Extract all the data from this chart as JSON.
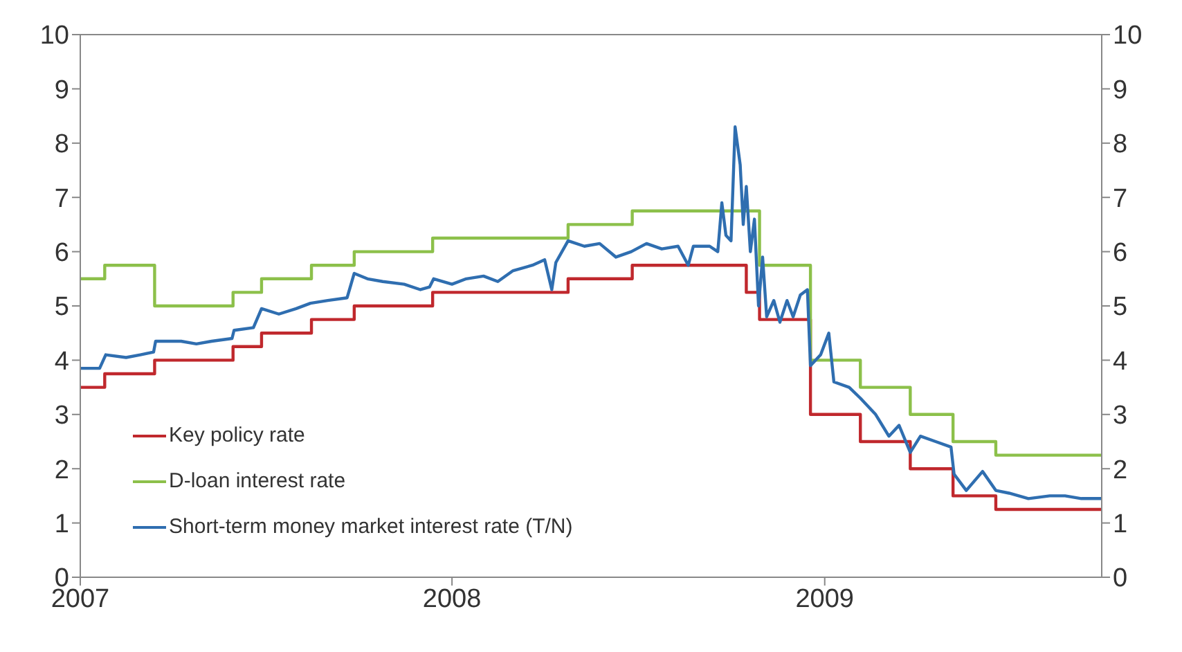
{
  "chart_data": {
    "type": "line",
    "xlim": [
      "2007-01-01",
      "2009-09-30"
    ],
    "xticks": [
      "2007",
      "2008",
      "2009"
    ],
    "ylim": [
      0,
      10
    ],
    "yticks": [
      0,
      1,
      2,
      3,
      4,
      5,
      6,
      7,
      8,
      9,
      10
    ],
    "y2lim": [
      0,
      10
    ],
    "y2ticks": [
      0,
      1,
      2,
      3,
      4,
      5,
      6,
      7,
      8,
      9,
      10
    ],
    "grid": false,
    "legend": "bottom left",
    "marker": "none",
    "line_style": "solid",
    "series": [
      {
        "name": "Key policy rate",
        "type": "step",
        "color": "#c0282d",
        "x": [
          "2007-01-01",
          "2007-01-25",
          "2007-03-15",
          "2007-05-31",
          "2007-06-28",
          "2007-08-16",
          "2007-09-27",
          "2007-12-13",
          "2008-04-24",
          "2008-06-26",
          "2008-10-16",
          "2008-10-29",
          "2008-12-18",
          "2009-02-05",
          "2009-03-26",
          "2009-05-07",
          "2009-06-18",
          "2009-09-30"
        ],
        "values": [
          3.5,
          3.75,
          4.0,
          4.25,
          4.5,
          4.75,
          5.0,
          5.25,
          5.5,
          5.75,
          5.25,
          4.75,
          3.0,
          2.5,
          2.0,
          1.5,
          1.25,
          1.25
        ]
      },
      {
        "name": "D-loan interest rate",
        "type": "step",
        "color": "#8cc04a",
        "x": [
          "2007-01-01",
          "2007-01-25",
          "2007-03-15",
          "2007-05-31",
          "2007-06-28",
          "2007-08-16",
          "2007-09-27",
          "2007-12-13",
          "2008-04-24",
          "2008-06-26",
          "2008-10-29",
          "2008-12-18",
          "2009-02-05",
          "2009-03-26",
          "2009-05-07",
          "2009-06-18",
          "2009-09-30"
        ],
        "values": [
          5.5,
          5.75,
          5.0,
          5.25,
          5.5,
          5.75,
          6.0,
          6.25,
          6.5,
          6.75,
          5.75,
          4.0,
          3.5,
          3.0,
          2.5,
          2.25,
          2.25
        ]
      },
      {
        "name": "Short-term money market interest rate (T/N)",
        "color": "#2f6eb0",
        "x": [
          "2007-01-01",
          "2007-01-20",
          "2007-01-26",
          "2007-02-15",
          "2007-03-01",
          "2007-03-14",
          "2007-03-16",
          "2007-04-10",
          "2007-04-25",
          "2007-05-10",
          "2007-05-30",
          "2007-06-01",
          "2007-06-20",
          "2007-06-28",
          "2007-07-15",
          "2007-08-01",
          "2007-08-15",
          "2007-09-01",
          "2007-09-20",
          "2007-09-27",
          "2007-10-10",
          "2007-10-25",
          "2007-11-15",
          "2007-12-01",
          "2007-12-10",
          "2007-12-14",
          "2008-01-01",
          "2008-01-15",
          "2008-02-01",
          "2008-02-15",
          "2008-03-01",
          "2008-03-20",
          "2008-04-01",
          "2008-04-08",
          "2008-04-12",
          "2008-04-24",
          "2008-05-10",
          "2008-05-25",
          "2008-06-10",
          "2008-06-25",
          "2008-07-10",
          "2008-07-25",
          "2008-08-10",
          "2008-08-20",
          "2008-08-25",
          "2008-09-10",
          "2008-09-18",
          "2008-09-22",
          "2008-09-26",
          "2008-10-01",
          "2008-10-05",
          "2008-10-10",
          "2008-10-13",
          "2008-10-16",
          "2008-10-20",
          "2008-10-24",
          "2008-10-28",
          "2008-11-01",
          "2008-11-05",
          "2008-11-12",
          "2008-11-18",
          "2008-11-25",
          "2008-12-01",
          "2008-12-08",
          "2008-12-15",
          "2008-12-18",
          "2008-12-28",
          "2009-01-05",
          "2009-01-10",
          "2009-01-25",
          "2009-02-05",
          "2009-02-20",
          "2009-03-05",
          "2009-03-15",
          "2009-03-26",
          "2009-04-05",
          "2009-04-20",
          "2009-05-05",
          "2009-05-08",
          "2009-05-20",
          "2009-06-05",
          "2009-06-18",
          "2009-07-01",
          "2009-07-20",
          "2009-08-10",
          "2009-08-25",
          "2009-09-10",
          "2009-09-30"
        ],
        "values": [
          3.85,
          3.85,
          4.1,
          4.05,
          4.1,
          4.15,
          4.35,
          4.35,
          4.3,
          4.35,
          4.4,
          4.55,
          4.6,
          4.95,
          4.85,
          4.95,
          5.05,
          5.1,
          5.15,
          5.6,
          5.5,
          5.45,
          5.4,
          5.3,
          5.35,
          5.5,
          5.4,
          5.5,
          5.55,
          5.45,
          5.65,
          5.75,
          5.85,
          5.3,
          5.8,
          6.2,
          6.1,
          6.15,
          5.9,
          6.0,
          6.15,
          6.05,
          6.1,
          5.75,
          6.1,
          6.1,
          6.0,
          6.9,
          6.3,
          6.2,
          8.3,
          7.6,
          6.5,
          7.2,
          6.0,
          6.6,
          5.0,
          5.9,
          4.8,
          5.1,
          4.7,
          5.1,
          4.8,
          5.2,
          5.3,
          3.9,
          4.1,
          4.5,
          3.6,
          3.5,
          3.3,
          3.0,
          2.6,
          2.8,
          2.3,
          2.6,
          2.5,
          2.4,
          1.9,
          1.6,
          1.95,
          1.6,
          1.55,
          1.45,
          1.5,
          1.5,
          1.45,
          1.45
        ]
      }
    ]
  }
}
